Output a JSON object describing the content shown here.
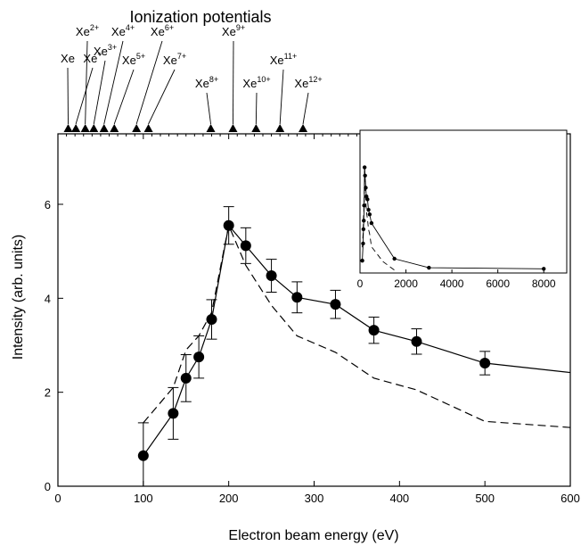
{
  "chart_data": {
    "type": "line",
    "title": "",
    "xlabel": "Electron beam energy (eV)",
    "ylabel": "Intensity (arb. units)",
    "xlim": [
      0,
      600
    ],
    "ylim": [
      0,
      7.5
    ],
    "x_ticks": [
      0,
      100,
      200,
      300,
      400,
      500,
      600
    ],
    "y_ticks": [
      0,
      2,
      4,
      6
    ],
    "grid": false,
    "series": [
      {
        "style": "solid-with-markers",
        "x": [
          100,
          135,
          150,
          165,
          180,
          200,
          220,
          250,
          280,
          325,
          370,
          420,
          500,
          600
        ],
        "y": [
          0.65,
          1.55,
          2.3,
          2.75,
          3.55,
          5.55,
          5.12,
          4.48,
          4.02,
          3.87,
          3.32,
          3.08,
          2.62,
          2.42
        ],
        "error": [
          0.7,
          0.55,
          0.5,
          0.45,
          0.42,
          0.4,
          0.38,
          0.35,
          0.33,
          0.3,
          0.28,
          0.27,
          0.25,
          null
        ]
      },
      {
        "style": "dashed",
        "x": [
          100,
          135,
          150,
          165,
          180,
          200,
          220,
          250,
          280,
          325,
          370,
          420,
          500,
          600
        ],
        "y": [
          1.35,
          2.1,
          2.9,
          3.2,
          3.7,
          5.55,
          4.7,
          3.85,
          3.2,
          2.85,
          2.3,
          2.05,
          1.38,
          1.25
        ]
      }
    ],
    "ionization": {
      "title": "Ionization potentials",
      "ions": [
        {
          "base": "Xe",
          "sup": "",
          "energy": 12
        },
        {
          "base": "Xe",
          "sup": "+",
          "energy": 21
        },
        {
          "base": "Xe",
          "sup": "2+",
          "energy": 32
        },
        {
          "base": "Xe",
          "sup": "3+",
          "energy": 42
        },
        {
          "base": "Xe",
          "sup": "4+",
          "energy": 54
        },
        {
          "base": "Xe",
          "sup": "5+",
          "energy": 66
        },
        {
          "base": "Xe",
          "sup": "6+",
          "energy": 92
        },
        {
          "base": "Xe",
          "sup": "7+",
          "energy": 106
        },
        {
          "base": "Xe",
          "sup": "8+",
          "energy": 179
        },
        {
          "base": "Xe",
          "sup": "9+",
          "energy": 205
        },
        {
          "base": "Xe",
          "sup": "10+",
          "energy": 232
        },
        {
          "base": "Xe",
          "sup": "11+",
          "energy": 260
        },
        {
          "base": "Xe",
          "sup": "12+",
          "energy": 287
        }
      ]
    },
    "inset": {
      "xlim": [
        0,
        9000
      ],
      "x_ticks": [
        0,
        2000,
        4000,
        6000,
        8000
      ],
      "series": [
        {
          "style": "solid-with-markers",
          "x": [
            100,
            135,
            150,
            165,
            180,
            200,
            220,
            250,
            280,
            325,
            370,
            420,
            500,
            1500,
            3000,
            8000
          ],
          "y": [
            0.65,
            1.55,
            2.3,
            2.75,
            3.55,
            5.55,
            5.12,
            4.48,
            4.02,
            3.87,
            3.32,
            3.08,
            2.62,
            0.75,
            0.28,
            0.22
          ]
        },
        {
          "style": "dashed",
          "x": [
            100,
            135,
            150,
            165,
            180,
            200,
            220,
            250,
            280,
            325,
            370,
            420,
            500,
            1000,
            1500
          ],
          "y": [
            1.35,
            2.1,
            2.9,
            3.2,
            3.7,
            5.55,
            4.7,
            3.85,
            3.2,
            2.85,
            2.3,
            2.05,
            1.38,
            0.6,
            0.15
          ]
        }
      ]
    }
  }
}
